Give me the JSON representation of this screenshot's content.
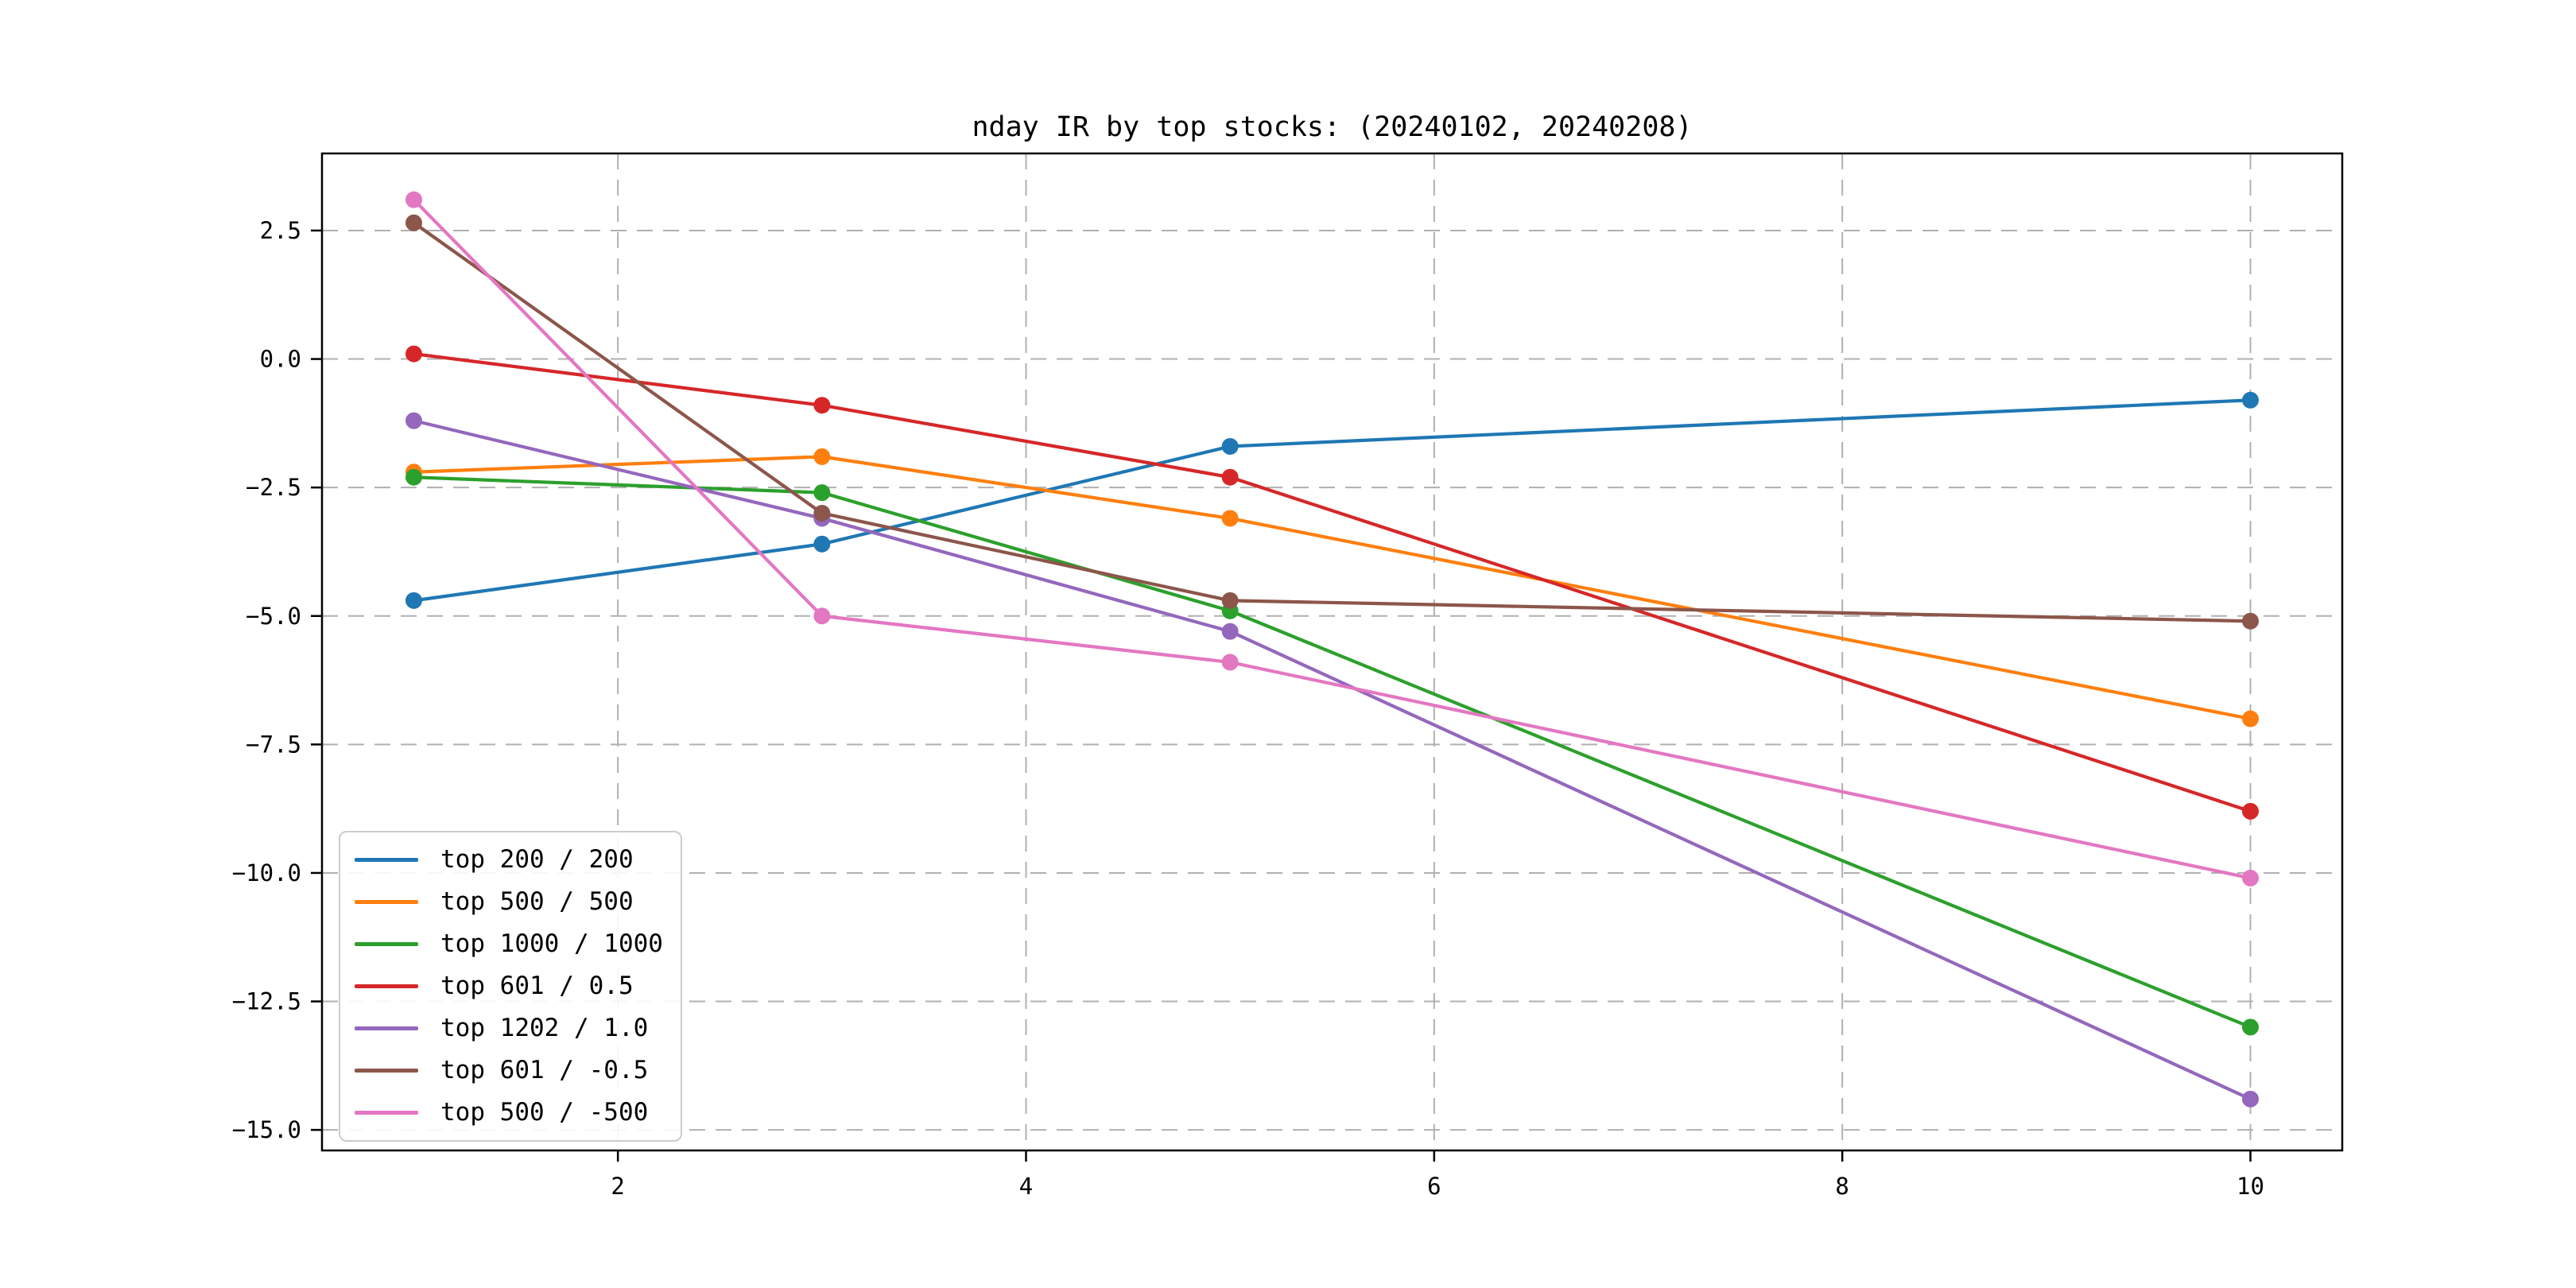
{
  "figure": {
    "title": "nday IR by top stocks: (20240102, 20240208)"
  },
  "chart_data": {
    "type": "line",
    "title": "nday IR by top stocks: (20240102, 20240208)",
    "xlabel": "",
    "ylabel": "",
    "x": [
      1,
      3,
      5,
      10
    ],
    "series": [
      {
        "name": "top 200 / 200",
        "color": "#1f77b4",
        "values": [
          -4.7,
          -3.6,
          -1.7,
          -0.8
        ]
      },
      {
        "name": "top 500 / 500",
        "color": "#ff7f0e",
        "values": [
          -2.2,
          -1.9,
          -3.1,
          -7.0
        ]
      },
      {
        "name": "top 1000 / 1000",
        "color": "#2ca02c",
        "values": [
          -2.3,
          -2.6,
          -4.9,
          -13.0
        ]
      },
      {
        "name": "top 601 / 0.5",
        "color": "#d62728",
        "values": [
          0.1,
          -0.9,
          -2.3,
          -8.8
        ]
      },
      {
        "name": "top 1202 / 1.0",
        "color": "#9467bd",
        "values": [
          -1.2,
          -3.1,
          -5.3,
          -14.4
        ]
      },
      {
        "name": "top 601 / -0.5",
        "color": "#8c564b",
        "values": [
          2.65,
          -3.0,
          -4.7,
          -5.1
        ]
      },
      {
        "name": "top 500 / -500",
        "color": "#e377c2",
        "values": [
          3.1,
          -5.0,
          -5.9,
          -10.1
        ]
      }
    ],
    "xtick_values": [
      2,
      4,
      6,
      8,
      10
    ],
    "xtick_labels": [
      "2",
      "4",
      "6",
      "8",
      "10"
    ],
    "ytick_values": [
      2.5,
      0.0,
      -2.5,
      -5.0,
      -7.5,
      -10.0,
      -12.5,
      -15.0
    ],
    "ytick_labels": [
      "2.5",
      "0.0",
      "−2.5",
      "−5.0",
      "−7.5",
      "−10.0",
      "−12.5",
      "−15.0"
    ],
    "xlim": [
      0.55,
      10.45
    ],
    "ylim": [
      -15.4,
      4.0
    ],
    "grid": true,
    "grid_style": "dashed",
    "grid_color": "#b0b0b0",
    "marker": "o",
    "legend_position": "lower left"
  }
}
